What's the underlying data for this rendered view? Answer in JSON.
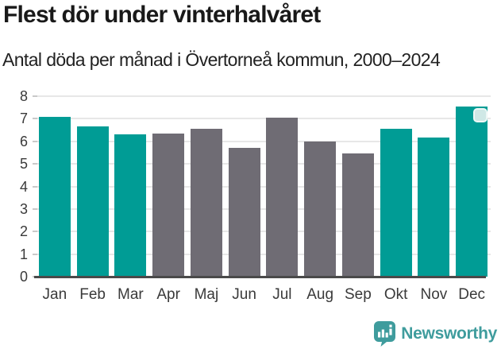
{
  "title": "Flest dör under vinterhalvåret",
  "subtitle": "Antal döda per månad i Övertorneå kommun, 2000–2024",
  "chart_data": {
    "type": "bar",
    "categories": [
      "Jan",
      "Feb",
      "Mar",
      "Apr",
      "Maj",
      "Jun",
      "Jul",
      "Aug",
      "Sep",
      "Okt",
      "Nov",
      "Dec"
    ],
    "values": [
      7.1,
      6.65,
      6.3,
      6.35,
      6.55,
      5.7,
      7.05,
      6.0,
      5.45,
      6.55,
      6.15,
      7.55
    ],
    "highlighted_categories": [
      "Jan",
      "Feb",
      "Mar",
      "Okt",
      "Nov",
      "Dec"
    ],
    "highlight_color": "#009c95",
    "default_color": "#6f6c74",
    "title": "Flest dör under vinterhalvåret",
    "xlabel": "",
    "ylabel": "",
    "ylim": [
      0,
      8
    ],
    "yticks": [
      0,
      1,
      2,
      3,
      4,
      5,
      6,
      7,
      8
    ],
    "grid": true,
    "legend": false,
    "annotation_marker": {
      "category": "Dec",
      "shape": "rounded-square"
    }
  },
  "axis": {
    "line_color": "#4a4a4a",
    "gridline_color": "#e7e7e7",
    "tick_color": "#c9c9c9",
    "label_color": "#3a3a3a"
  },
  "branding": {
    "name": "Newsworthy",
    "color": "#3f9c9d",
    "icon": "bar-chart-speech-bubble-icon"
  }
}
